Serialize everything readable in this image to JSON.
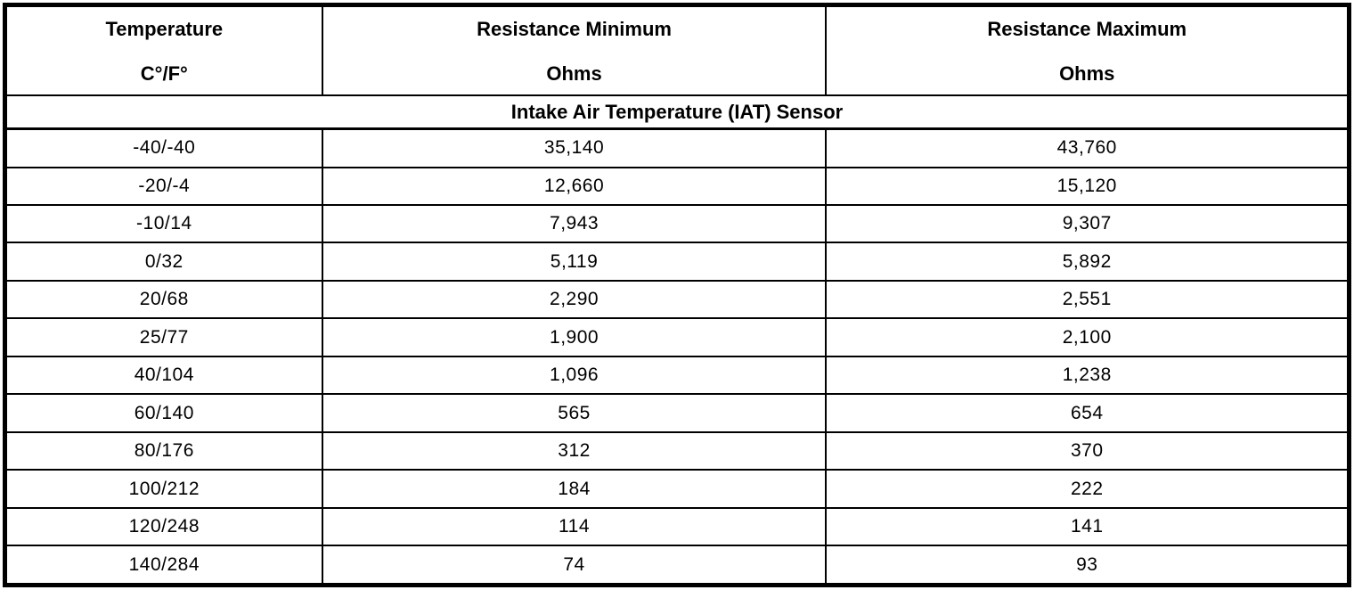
{
  "table": {
    "columns": [
      {
        "title": "Temperature",
        "subtitle": "C°/F°"
      },
      {
        "title": "Resistance Minimum",
        "subtitle": "Ohms"
      },
      {
        "title": "Resistance Maximum",
        "subtitle": "Ohms"
      }
    ],
    "section_title": "Intake Air Temperature (IAT) Sensor",
    "rows": [
      [
        "-40/-40",
        "35,140",
        "43,760"
      ],
      [
        "-20/-4",
        "12,660",
        "15,120"
      ],
      [
        "-10/14",
        "7,943",
        "9,307"
      ],
      [
        "0/32",
        "5,119",
        "5,892"
      ],
      [
        "20/68",
        "2,290",
        "2,551"
      ],
      [
        "25/77",
        "1,900",
        "2,100"
      ],
      [
        "40/104",
        "1,096",
        "1,238"
      ],
      [
        "60/140",
        "565",
        "654"
      ],
      [
        "80/176",
        "312",
        "370"
      ],
      [
        "100/212",
        "184",
        "222"
      ],
      [
        "120/248",
        "114",
        "141"
      ],
      [
        "140/284",
        "74",
        "93"
      ]
    ],
    "colors": {
      "border": "#000000",
      "background": "#ffffff",
      "text": "#000000"
    }
  },
  "chart_data": {
    "type": "table",
    "title": "Intake Air Temperature (IAT) Sensor",
    "columns": [
      "Temperature C°/F°",
      "Resistance Minimum Ohms",
      "Resistance Maximum Ohms"
    ],
    "temperature_c": [
      -40,
      -20,
      -10,
      0,
      20,
      25,
      40,
      60,
      80,
      100,
      120,
      140
    ],
    "temperature_f": [
      -40,
      -4,
      14,
      32,
      68,
      77,
      104,
      140,
      176,
      212,
      248,
      284
    ],
    "resistance_min_ohms": [
      35140,
      12660,
      7943,
      5119,
      2290,
      1900,
      1096,
      565,
      312,
      184,
      114,
      74
    ],
    "resistance_max_ohms": [
      43760,
      15120,
      9307,
      5892,
      2551,
      2100,
      1238,
      654,
      370,
      222,
      141,
      93
    ]
  }
}
